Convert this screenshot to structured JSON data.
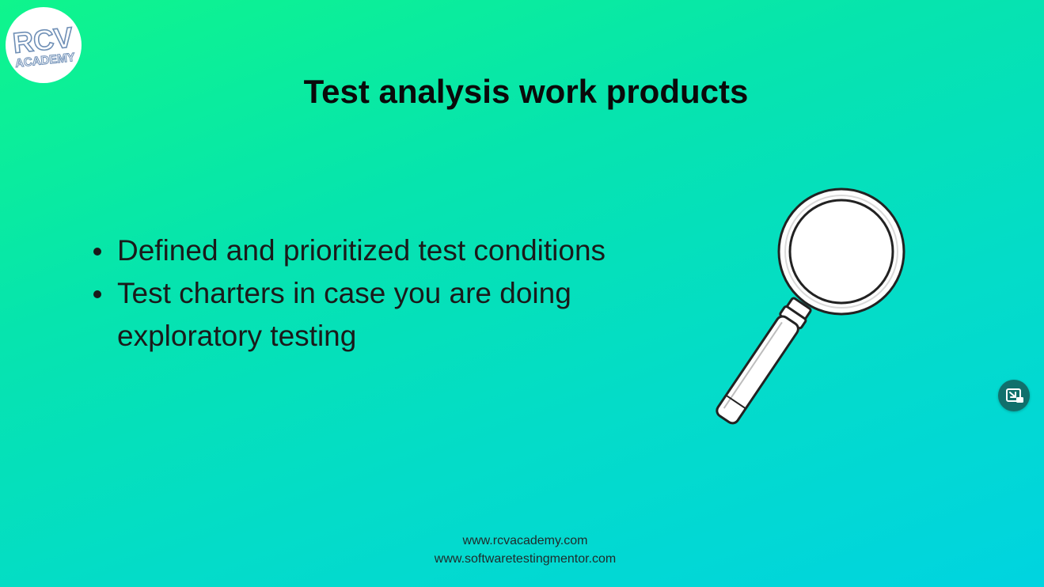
{
  "slide": {
    "logo": {
      "text_line1": "RCV",
      "text_line2": "ACADEMY"
    },
    "title": "Test analysis work products",
    "bullets": [
      {
        "text": "Defined and prioritized test conditions"
      },
      {
        "text": "Test charters in case you are doing exploratory testing"
      }
    ],
    "illustration": "magnifying-glass",
    "footer": {
      "line1": "www.rcvacademy.com",
      "line2": "www.softwaretestingmentor.com"
    }
  },
  "controls": {
    "pip_button_icon": "picture-in-picture-exit-icon"
  },
  "colors": {
    "background_start": "#0ff58c",
    "background_end": "#00d4e0",
    "title": "#0a0a0a",
    "pip_button": "#11706c"
  }
}
